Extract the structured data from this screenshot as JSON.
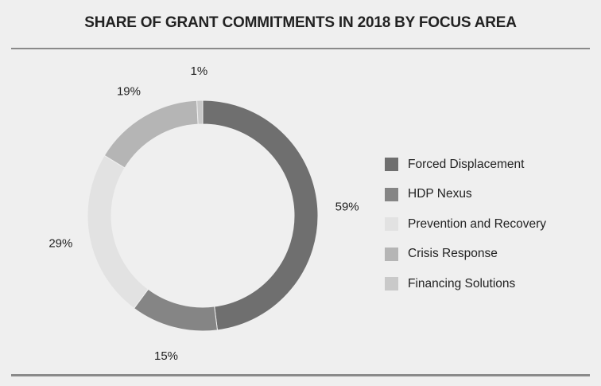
{
  "chart_data": {
    "type": "pie",
    "donut": true,
    "title": "SHARE OF GRANT COMMITMENTS IN 2018 BY FOCUS AREA",
    "categories": [
      "Forced Displacement",
      "HDP Nexus",
      "Prevention and Recovery",
      "Crisis Response",
      "Financing Solutions"
    ],
    "values": [
      59,
      15,
      29,
      19,
      1
    ],
    "value_labels": [
      "59%",
      "15%",
      "29%",
      "19%",
      "1%"
    ],
    "colors": [
      "#6f6f6f",
      "#858585",
      "#e2e2e2",
      "#b5b5b5",
      "#c9c9c9"
    ],
    "legend": "right"
  }
}
